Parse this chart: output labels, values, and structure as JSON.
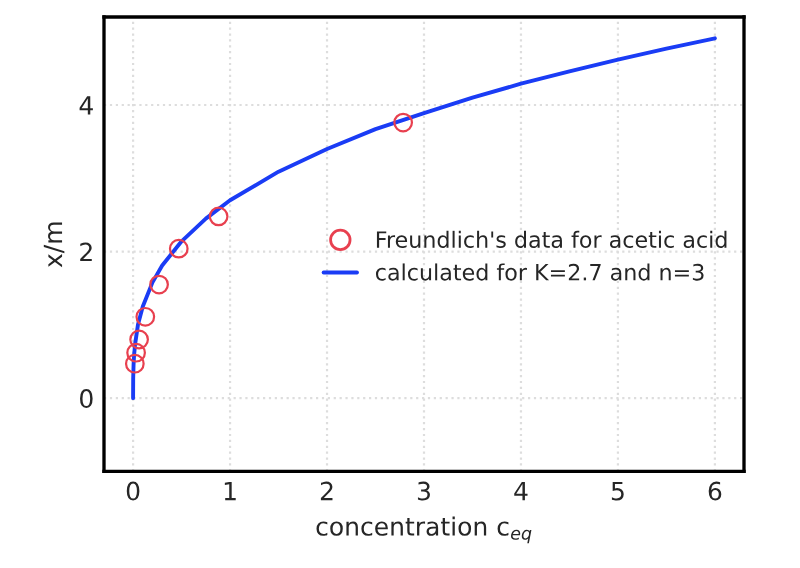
{
  "chart_data": {
    "type": "scatter",
    "xlabel": "concentration c$_{eq}$",
    "ylabel": "x/m",
    "xlim": [
      -0.3,
      6.3
    ],
    "ylim": [
      -1,
      5.2
    ],
    "xticks": [
      0,
      1,
      2,
      3,
      4,
      5,
      6
    ],
    "yticks": [
      0,
      2,
      4
    ],
    "grid": true,
    "legend": "right",
    "series": [
      {
        "name": "Freundlich's data for acetic acid",
        "marker": "circle",
        "color": "#e8404f",
        "x": [
          0.018,
          0.031,
          0.062,
          0.126,
          0.268,
          0.471,
          0.882,
          2.785
        ],
        "values": [
          0.47,
          0.62,
          0.8,
          1.11,
          1.55,
          2.04,
          2.48,
          3.76
        ]
      },
      {
        "name": "calculated for K=2.7 and n=3",
        "type": "line",
        "marker": "none",
        "line_style": "solid",
        "color": "#1a3cf5",
        "x": [
          0,
          0.001,
          0.005,
          0.01,
          0.02,
          0.05,
          0.1,
          0.2,
          0.3,
          0.5,
          0.75,
          1,
          1.5,
          2,
          2.5,
          3,
          3.5,
          4,
          4.5,
          5,
          5.5,
          6
        ],
        "values": [
          0,
          0.27,
          0.46,
          0.58,
          0.73,
          1.0,
          1.25,
          1.58,
          1.81,
          2.14,
          2.45,
          2.7,
          3.09,
          3.4,
          3.67,
          3.89,
          4.1,
          4.29,
          4.46,
          4.62,
          4.77,
          4.91
        ]
      }
    ]
  }
}
